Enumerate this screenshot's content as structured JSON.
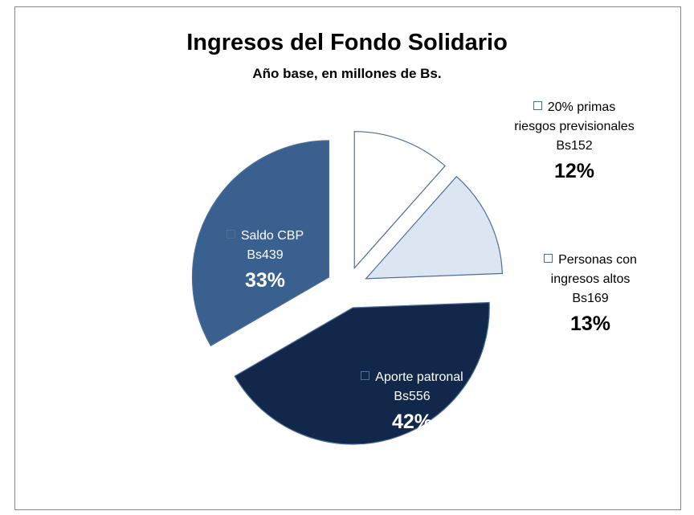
{
  "chart_data": {
    "type": "pie",
    "title": "Ingresos del Fondo Solidario",
    "subtitle": "Año base, en millones de Bs.",
    "categories": [
      "20% primas riesgos previsionales",
      "Personas con ingresos altos",
      "Aporte patronal",
      "Saldo CBP"
    ],
    "values": [
      152,
      169,
      556,
      439
    ],
    "value_labels": [
      "Bs152",
      "Bs169",
      "Bs556",
      "Bs439"
    ],
    "percent_labels": [
      "12%",
      "13%",
      "42%",
      "33%"
    ],
    "colors": [
      "#ffffff",
      "#dce6f2",
      "#11284a",
      "#3a6090"
    ]
  }
}
